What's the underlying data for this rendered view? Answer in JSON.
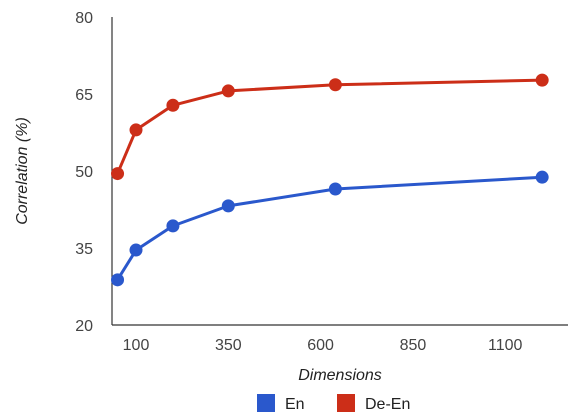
{
  "chart_data": {
    "type": "line",
    "title": "",
    "xlabel": "Dimensions",
    "ylabel": "Correlation (%)",
    "x": [
      50,
      100,
      200,
      350,
      640,
      1200
    ],
    "xlim": [
      35,
      1270
    ],
    "xticks": [
      100,
      350,
      600,
      850,
      1100
    ],
    "ylim": [
      20,
      80
    ],
    "yticks": [
      20,
      35,
      50,
      65,
      80
    ],
    "grid": false,
    "legend_position": "bottom",
    "series": [
      {
        "name": "En",
        "color": "#2a58cc",
        "values": [
          28.8,
          34.6,
          39.3,
          43.2,
          46.5,
          48.8
        ]
      },
      {
        "name": "De-En",
        "color": "#cc2e18",
        "values": [
          49.5,
          58.0,
          62.8,
          65.6,
          66.8,
          67.7
        ]
      }
    ]
  }
}
